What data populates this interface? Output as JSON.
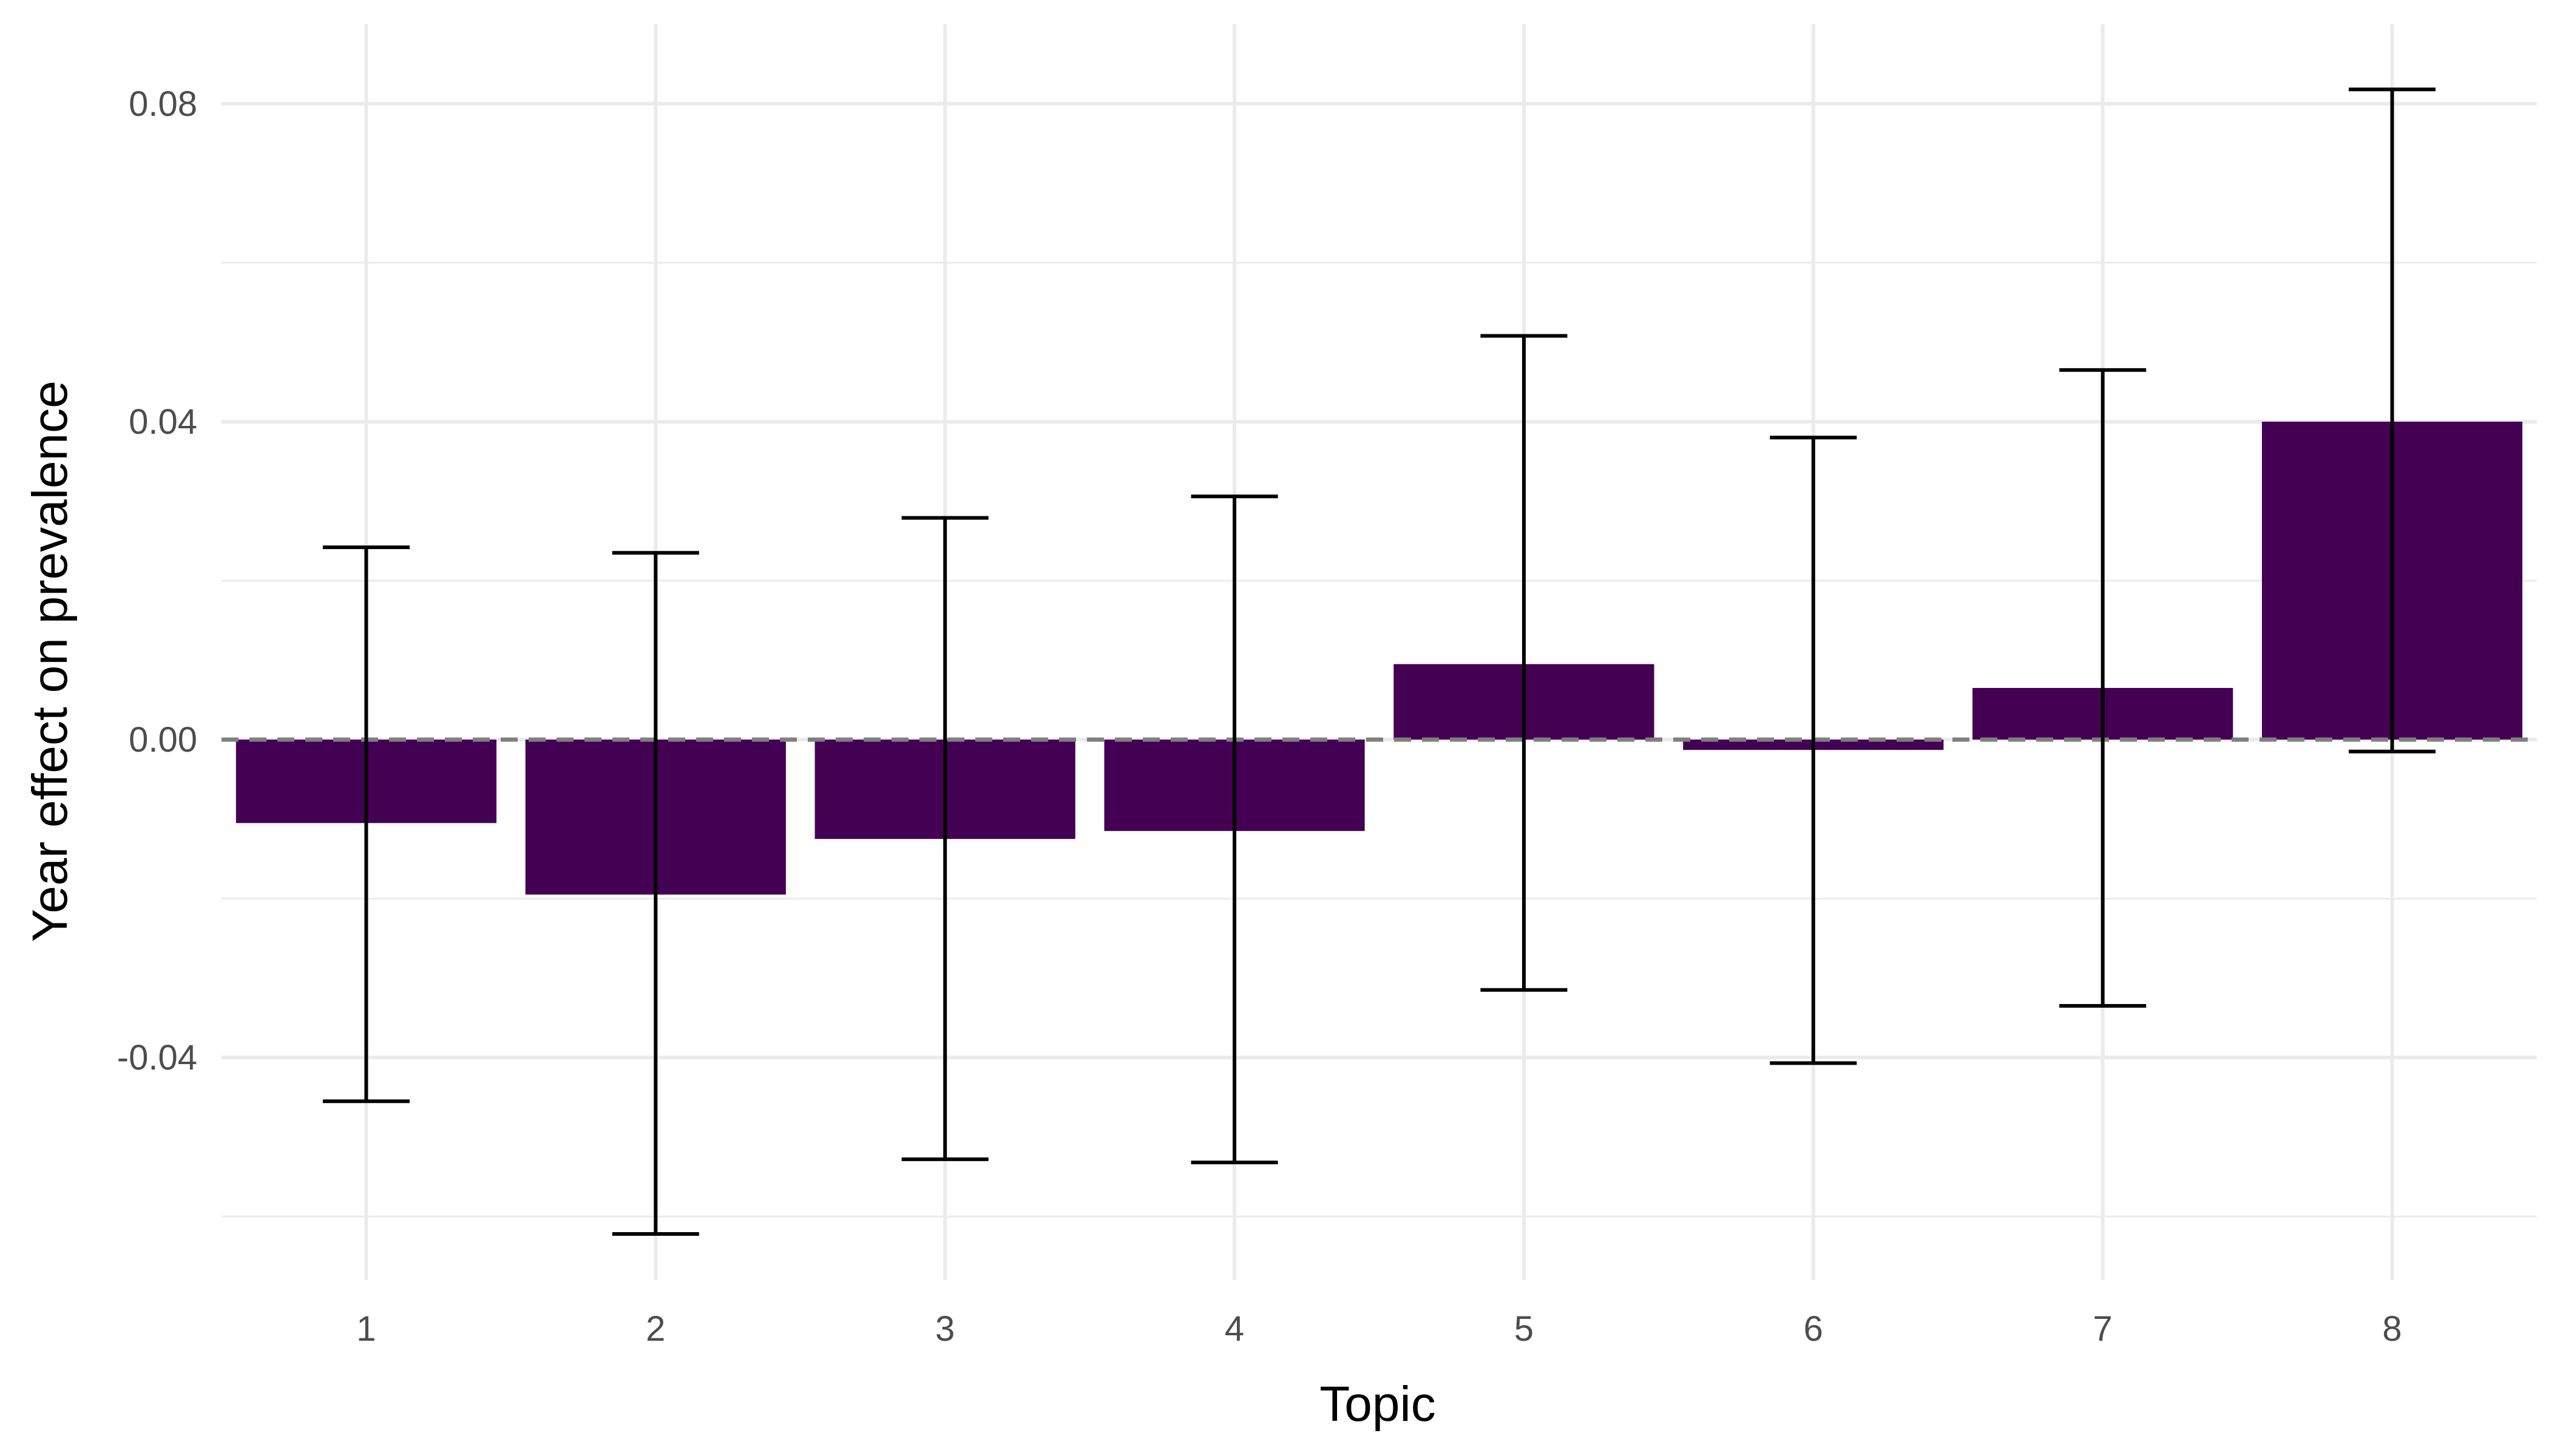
{
  "chart_data": {
    "type": "bar",
    "title": "",
    "xlabel": "Topic",
    "ylabel": "Year effect on prevalence",
    "categories": [
      "1",
      "2",
      "3",
      "4",
      "5",
      "6",
      "7",
      "8"
    ],
    "values": [
      -0.0105,
      -0.0195,
      -0.0125,
      -0.0115,
      0.0095,
      -0.0013,
      0.0065,
      0.04
    ],
    "error_lower": [
      -0.0455,
      -0.0622,
      -0.0528,
      -0.0532,
      -0.0315,
      -0.0407,
      -0.0335,
      -0.0015
    ],
    "error_upper": [
      0.0242,
      0.0235,
      0.0279,
      0.0306,
      0.0508,
      0.038,
      0.0465,
      0.0818
    ],
    "ylim": [
      -0.068,
      0.09
    ],
    "yticks": [
      -0.04,
      0.0,
      0.04,
      0.08
    ],
    "ytick_labels": [
      "-0.04",
      "0.00",
      "0.04",
      "0.08"
    ],
    "reference_line": 0,
    "grid": true,
    "legend": "none",
    "colors": {
      "bar": "#440154",
      "error_bar": "#000000",
      "reference_line": "#7f7f7f",
      "grid": "#ebebeb"
    }
  }
}
